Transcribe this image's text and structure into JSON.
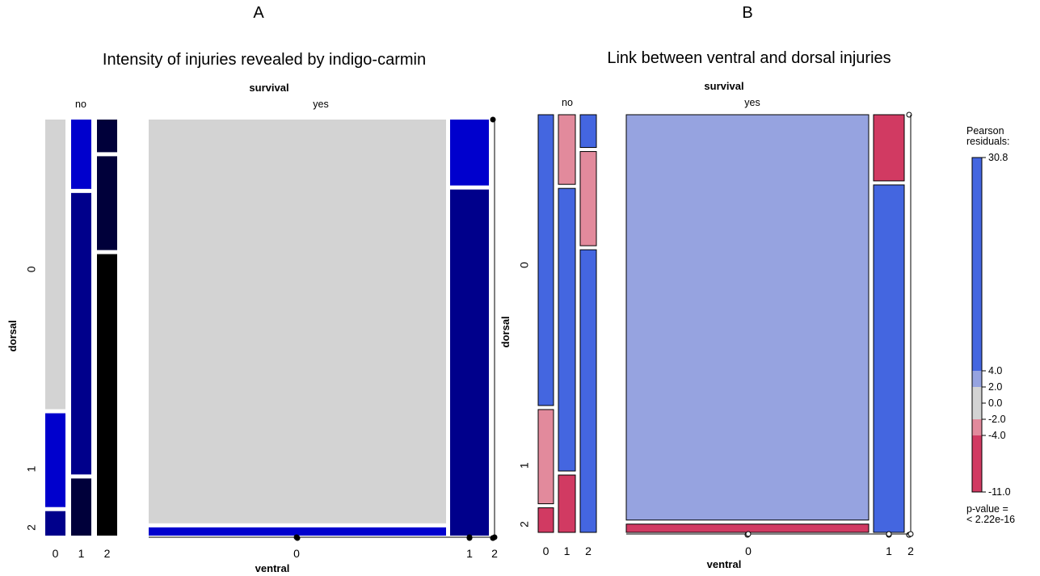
{
  "chart_data": [
    {
      "type": "mosaic",
      "panel_label": "A",
      "title": "Intensity of injuries revealed by indigo-carmin",
      "column_variable": "survival",
      "column_levels": [
        "no",
        "yes"
      ],
      "x_variable": "ventral",
      "x_levels": [
        "0",
        "1",
        "2"
      ],
      "y_variable": "dorsal",
      "y_levels": [
        "0",
        "1",
        "2"
      ],
      "survival_widths": [
        0.2,
        0.8
      ],
      "ventral_widths": {
        "no": [
          0.33,
          0.33,
          0.34
        ],
        "yes": [
          0.88,
          0.12,
          0.0
        ]
      },
      "dorsal_fractions": {
        "no": {
          "0": [
            0.71,
            0.23,
            0.06
          ],
          "1": [
            0.17,
            0.69,
            0.14
          ],
          "2": [
            0.08,
            0.23,
            0.69
          ]
        },
        "yes": {
          "0": [
            0.98,
            0.0,
            0.02
          ],
          "1": [
            0.16,
            0.0,
            0.84
          ],
          "2": [
            0.0,
            0.0,
            0.0
          ]
        }
      },
      "fills": {
        "no": {
          "0": [
            "#d3d3d3",
            "#0000cd",
            "#00008b"
          ],
          "1": [
            "#0000cd",
            "#00008b",
            "#00003a"
          ],
          "2": [
            "#00003a",
            "#00003a",
            "#000000"
          ]
        },
        "yes": {
          "0": [
            "#d3d3d3",
            "#0000cd",
            "#0000cd"
          ],
          "1": [
            "#0000cd",
            "#0000cd",
            "#00008b"
          ],
          "2": [
            "#00008b",
            "#00008b",
            "#00008b"
          ]
        }
      },
      "shading": "filled"
    },
    {
      "type": "mosaic",
      "panel_label": "B",
      "title": "Link between ventral and dorsal injuries",
      "column_variable": "survival",
      "column_levels": [
        "no",
        "yes"
      ],
      "x_variable": "ventral",
      "x_levels": [
        "0",
        "1",
        "2"
      ],
      "y_variable": "dorsal",
      "y_levels": [
        "0",
        "1",
        "2"
      ],
      "survival_widths": [
        0.2,
        0.8
      ],
      "ventral_widths": {
        "no": [
          0.33,
          0.33,
          0.34
        ],
        "yes": [
          0.88,
          0.12,
          0.0
        ]
      },
      "dorsal_fractions": {
        "no": {
          "0": [
            0.71,
            0.23,
            0.06
          ],
          "1": [
            0.17,
            0.69,
            0.14
          ],
          "2": [
            0.08,
            0.23,
            0.69
          ]
        },
        "yes": {
          "0": [
            0.98,
            0.0,
            0.02
          ],
          "1": [
            0.16,
            0.0,
            0.84
          ],
          "2": [
            0.0,
            0.0,
            0.0
          ]
        }
      },
      "residual_colors": {
        "no": {
          "0": [
            "#4466e0",
            "#e28a9c",
            "#d13a62"
          ],
          "1": [
            "#e28a9c",
            "#4466e0",
            "#d13a62"
          ],
          "2": [
            "#4466e0",
            "#e28a9c",
            "#4466e0"
          ]
        },
        "yes": {
          "0": [
            "#96a3e0",
            "#d13a62",
            "#d13a62"
          ],
          "1": [
            "#d13a62",
            "#4466e0",
            "#4466e0"
          ],
          "2": [
            "#4466e0",
            "#4466e0",
            "#4466e0"
          ]
        }
      },
      "shading": "outlined",
      "legend": {
        "title": "Pearson\nresiduals:",
        "breaks": [
          30.8,
          4.0,
          2.0,
          0.0,
          -2.0,
          -4.0,
          -11.0
        ],
        "tick_labels": [
          "30.8",
          "4.0",
          "2.0",
          "0.0",
          "-2.0",
          "-4.0",
          "-11.0"
        ],
        "band_colors": [
          "#4466e0",
          "#96a3e0",
          "#d3d3d3",
          "#d3d3d3",
          "#e28a9c",
          "#d13a62"
        ],
        "p_value_text": "p-value =\n< 2.22e-16",
        "placement": "right"
      }
    }
  ]
}
